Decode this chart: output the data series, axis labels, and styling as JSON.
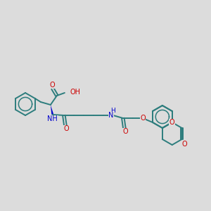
{
  "bg_color": "#dcdcdc",
  "bond_color": "#2d7d7d",
  "O_color": "#cc0000",
  "N_color": "#0000cc",
  "lw": 1.4,
  "fs": 7.0,
  "figsize": [
    3.0,
    3.0
  ],
  "dpi": 100,
  "xlim": [
    0,
    300
  ],
  "ylim": [
    60,
    240
  ]
}
